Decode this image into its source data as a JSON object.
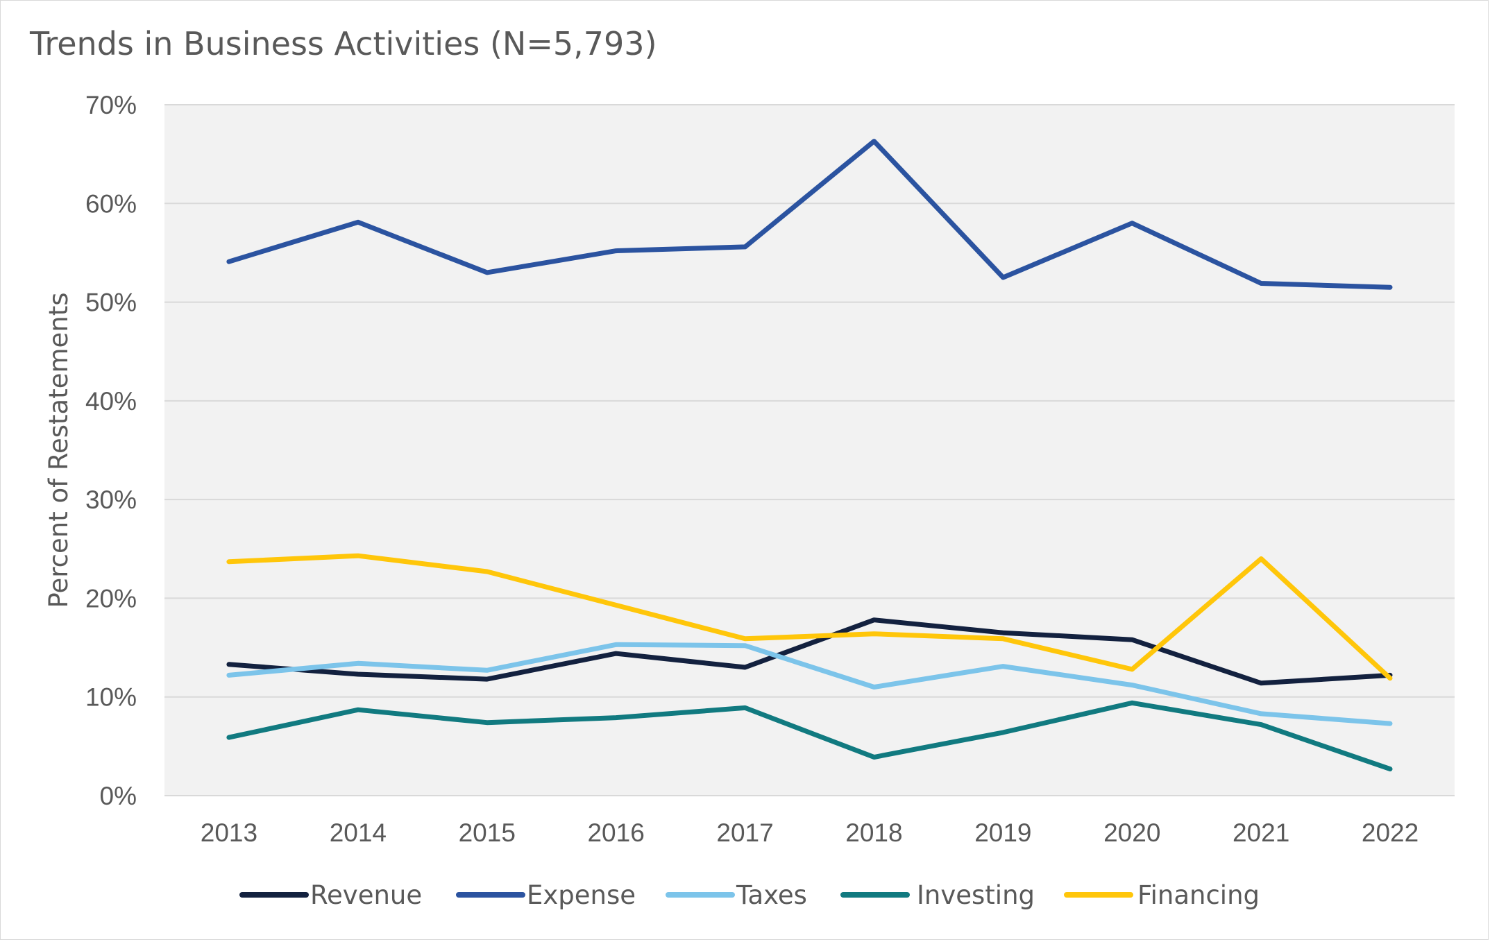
{
  "chart_data": {
    "type": "line",
    "title": "Trends in Business Activities (N=5,793)",
    "xlabel": "",
    "ylabel": "Percent of Restatements",
    "ylim": [
      0,
      70
    ],
    "y_ticks": [
      0,
      10,
      20,
      30,
      40,
      50,
      60,
      70
    ],
    "y_tick_labels": [
      "0%",
      "10%",
      "20%",
      "30%",
      "40%",
      "50%",
      "60%",
      "70%"
    ],
    "grid": true,
    "legend_position": "bottom",
    "plot_background": "#f2f2f2",
    "categories": [
      "2013",
      "2014",
      "2015",
      "2016",
      "2017",
      "2018",
      "2019",
      "2020",
      "2021",
      "2022"
    ],
    "series": [
      {
        "name": "Revenue",
        "color": "#13213f",
        "values": [
          13.3,
          12.3,
          11.8,
          14.4,
          13.0,
          17.8,
          16.5,
          15.8,
          11.4,
          12.2
        ]
      },
      {
        "name": "Expense",
        "color": "#2b53a0",
        "values": [
          54.1,
          58.1,
          53.0,
          55.2,
          55.6,
          66.3,
          52.5,
          58.0,
          51.9,
          51.5
        ]
      },
      {
        "name": "Taxes",
        "color": "#7cc4ea",
        "values": [
          12.2,
          13.4,
          12.7,
          15.3,
          15.2,
          11.0,
          13.1,
          11.2,
          8.3,
          7.3
        ]
      },
      {
        "name": "Investing",
        "color": "#117a80",
        "values": [
          5.9,
          8.7,
          7.4,
          7.9,
          8.9,
          3.9,
          6.4,
          9.4,
          7.2,
          2.7
        ]
      },
      {
        "name": "Financing",
        "color": "#ffc60a",
        "values": [
          23.7,
          24.3,
          22.7,
          19.3,
          15.9,
          16.4,
          15.9,
          12.8,
          24.0,
          11.9
        ]
      }
    ]
  }
}
